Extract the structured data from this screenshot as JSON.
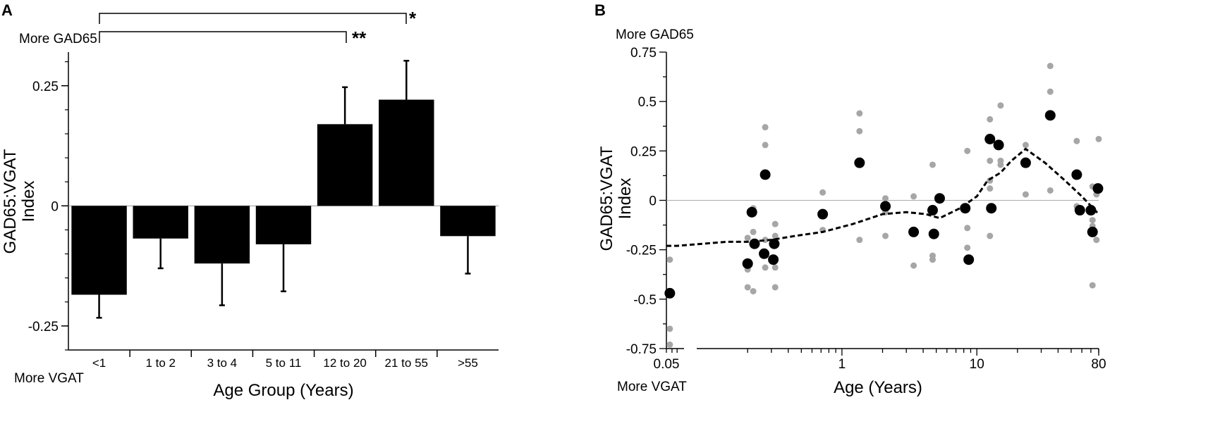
{
  "chart_data": [
    {
      "panel": "A",
      "type": "bar",
      "ylabel_line1": "GAD65:VGAT",
      "ylabel_line2": "Index",
      "xlabel": "Age Group (Years)",
      "top_note": "More GAD65",
      "bottom_note": "More VGAT",
      "ylim": [
        -0.3,
        0.32
      ],
      "yticks": [
        {
          "value": 0.25,
          "label": "0.25"
        },
        {
          "value": 0,
          "label": "0"
        },
        {
          "value": -0.25,
          "label": "-0.25"
        }
      ],
      "categories": [
        "<1",
        "1 to 2",
        "3 to 4",
        "5 to 11",
        "12 to 20",
        "21 to 55",
        ">55"
      ],
      "values": [
        -0.185,
        -0.068,
        -0.12,
        -0.08,
        0.17,
        0.221,
        -0.063
      ],
      "errors": [
        0.048,
        0.062,
        0.087,
        0.098,
        0.077,
        0.081,
        0.078
      ],
      "significance": [
        {
          "from": "<1",
          "to": "21 to 55",
          "label": "*"
        },
        {
          "from": "<1",
          "to": "12 to 20",
          "label": "**"
        }
      ]
    },
    {
      "panel": "B",
      "type": "scatter",
      "scale_x": "log",
      "ylabel_line1": "GAD65:VGAT",
      "ylabel_line2": "Index",
      "xlabel": "Age (Years)",
      "top_note": "More GAD65",
      "bottom_note": "More VGAT",
      "xlim": [
        0.05,
        80
      ],
      "ylim": [
        -0.75,
        0.75
      ],
      "xticks": [
        {
          "value": 0.05,
          "label": "0.05"
        },
        {
          "value": 1,
          "label": "1"
        },
        {
          "value": 10,
          "label": "10"
        },
        {
          "value": 80,
          "label": "80"
        }
      ],
      "yticks": [
        {
          "value": 0.75,
          "label": "0.75"
        },
        {
          "value": 0.5,
          "label": "0.5"
        },
        {
          "value": 0.25,
          "label": "0.25"
        },
        {
          "value": 0,
          "label": "0"
        },
        {
          "value": -0.25,
          "label": "-0.25"
        },
        {
          "value": -0.5,
          "label": "-0.5"
        },
        {
          "value": -0.75,
          "label": "-0.75"
        }
      ],
      "series": [
        {
          "name": "individual measurements",
          "color": "#a6a6a6",
          "points": [
            [
              0.053,
              -0.3
            ],
            [
              0.053,
              -0.65
            ],
            [
              0.053,
              -0.73
            ],
            [
              0.2,
              -0.35
            ],
            [
              0.2,
              -0.44
            ],
            [
              0.2,
              -0.19
            ],
            [
              0.22,
              -0.16
            ],
            [
              0.22,
              -0.04
            ],
            [
              0.22,
              -0.46
            ],
            [
              0.27,
              -0.34
            ],
            [
              0.27,
              -0.2
            ],
            [
              0.27,
              0.37
            ],
            [
              0.27,
              0.28
            ],
            [
              0.32,
              -0.18
            ],
            [
              0.32,
              -0.12
            ],
            [
              0.32,
              -0.34
            ],
            [
              0.32,
              -0.44
            ],
            [
              0.72,
              0.04
            ],
            [
              0.72,
              -0.08
            ],
            [
              0.72,
              -0.15
            ],
            [
              1.35,
              0.44
            ],
            [
              1.35,
              0.35
            ],
            [
              1.35,
              -0.2
            ],
            [
              2.1,
              0.01
            ],
            [
              2.1,
              -0.06
            ],
            [
              2.1,
              -0.18
            ],
            [
              3.4,
              0.02
            ],
            [
              3.4,
              -0.33
            ],
            [
              4.7,
              0.18
            ],
            [
              4.7,
              -0.28
            ],
            [
              4.7,
              -0.3
            ],
            [
              8.5,
              0.25
            ],
            [
              8.5,
              -0.14
            ],
            [
              8.5,
              -0.24
            ],
            [
              12.5,
              0.41
            ],
            [
              12.5,
              0.2
            ],
            [
              12.5,
              0.06
            ],
            [
              12.5,
              0.1
            ],
            [
              12.5,
              -0.18
            ],
            [
              15,
              0.48
            ],
            [
              15,
              0.2
            ],
            [
              15,
              0.18
            ],
            [
              23,
              0.28
            ],
            [
              23,
              0.03
            ],
            [
              35,
              0.68
            ],
            [
              35,
              0.55
            ],
            [
              35,
              0.05
            ],
            [
              55,
              0.3
            ],
            [
              55,
              -0.03
            ],
            [
              72,
              0.07
            ],
            [
              72,
              -0.1
            ],
            [
              72,
              -0.13
            ],
            [
              72,
              -0.43
            ],
            [
              77,
              0.03
            ],
            [
              77,
              -0.2
            ],
            [
              80,
              0.31
            ]
          ]
        },
        {
          "name": "subject means",
          "color": "#000000",
          "points": [
            [
              0.053,
              -0.47
            ],
            [
              0.2,
              -0.32
            ],
            [
              0.215,
              -0.06
            ],
            [
              0.225,
              -0.22
            ],
            [
              0.265,
              -0.27
            ],
            [
              0.27,
              0.13
            ],
            [
              0.31,
              -0.3
            ],
            [
              0.315,
              -0.22
            ],
            [
              0.72,
              -0.07
            ],
            [
              1.35,
              0.19
            ],
            [
              2.1,
              -0.03
            ],
            [
              3.4,
              -0.16
            ],
            [
              4.7,
              -0.05
            ],
            [
              4.8,
              -0.17
            ],
            [
              5.3,
              0.01
            ],
            [
              8.2,
              -0.04
            ],
            [
              8.7,
              -0.3
            ],
            [
              12.5,
              0.31
            ],
            [
              12.8,
              -0.04
            ],
            [
              14.5,
              0.28
            ],
            [
              23,
              0.19
            ],
            [
              35,
              0.43
            ],
            [
              55,
              0.13
            ],
            [
              58,
              -0.05
            ],
            [
              70,
              -0.05
            ],
            [
              72,
              -0.16
            ],
            [
              79,
              0.06
            ]
          ]
        }
      ],
      "trend_line": [
        [
          0.05,
          -0.23
        ],
        [
          0.06,
          -0.23
        ],
        [
          0.14,
          -0.21
        ],
        [
          0.2,
          -0.21
        ],
        [
          0.3,
          -0.2
        ],
        [
          0.45,
          -0.18
        ],
        [
          0.72,
          -0.16
        ],
        [
          1.2,
          -0.12
        ],
        [
          2.0,
          -0.07
        ],
        [
          3.0,
          -0.06
        ],
        [
          4.2,
          -0.07
        ],
        [
          5.3,
          -0.09
        ],
        [
          7.5,
          -0.04
        ],
        [
          10.0,
          0.02
        ],
        [
          12.0,
          0.1
        ],
        [
          15.0,
          0.14
        ],
        [
          18.0,
          0.2
        ],
        [
          23.0,
          0.26
        ],
        [
          32.0,
          0.19
        ],
        [
          45.0,
          0.1
        ],
        [
          60.0,
          0.02
        ],
        [
          80.0,
          -0.07
        ]
      ]
    }
  ]
}
